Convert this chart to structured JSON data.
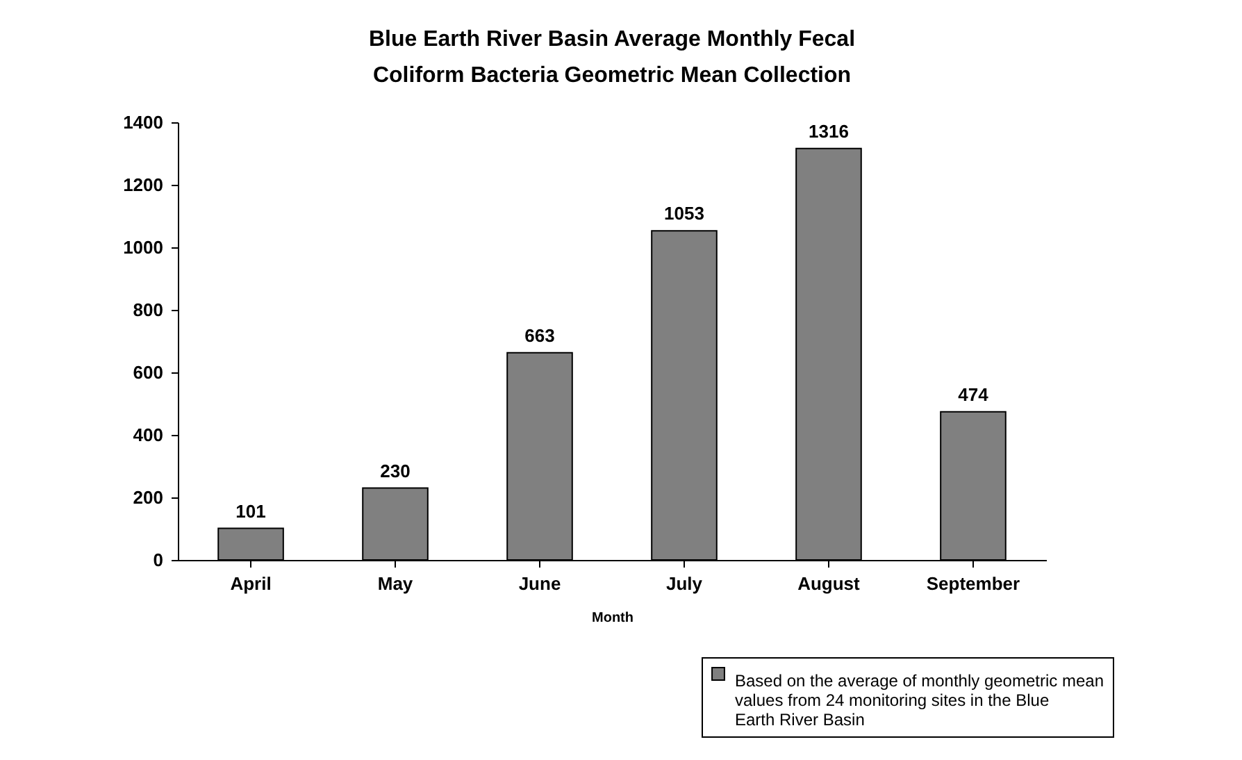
{
  "chart_data": {
    "type": "bar",
    "title": "Blue Earth River Basin Average Monthly Fecal Coliform Bacteria Geometric Mean Collection",
    "xlabel": "Month",
    "categories": [
      "April",
      "May",
      "June",
      "July",
      "August",
      "September"
    ],
    "series": [
      {
        "name": "Based on the average of monthly geometric mean values from 24 monitoring sites in the Blue Earth River Basin",
        "color": "#808080",
        "values": [
          101,
          230,
          663,
          1053,
          1316,
          474
        ]
      }
    ],
    "ylim": [
      0,
      1400
    ],
    "yticks": [
      0,
      200,
      400,
      600,
      800,
      1000,
      1200,
      1400
    ],
    "data_labels": true,
    "grid": false,
    "legend": "bottom right"
  }
}
